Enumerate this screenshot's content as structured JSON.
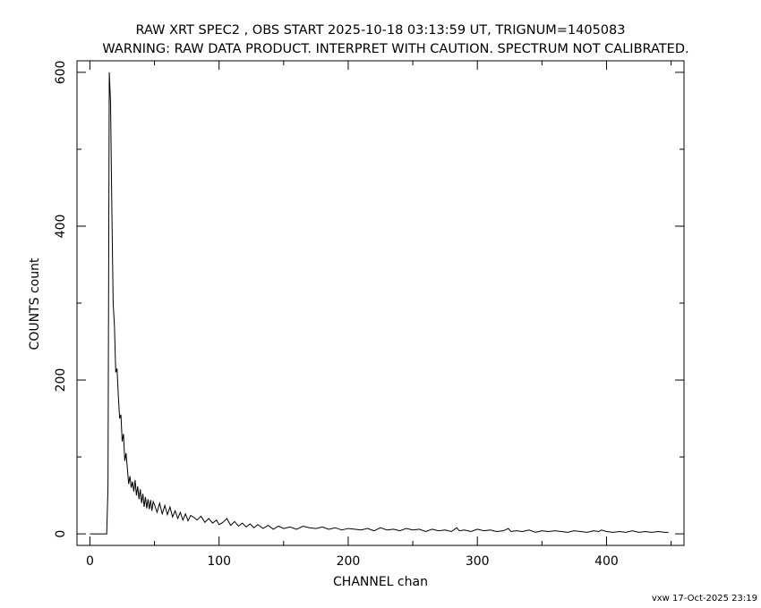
{
  "chart_data": {
    "type": "line",
    "title": "RAW XRT SPEC2 , OBS START 2025-10-18 03:13:59 UT, TRIGNUM=1405083",
    "subtitle": "WARNING: RAW DATA PRODUCT. INTERPRET WITH CAUTION. SPECTRUM NOT CALIBRATED.",
    "xlabel": "CHANNEL  chan",
    "ylabel": "COUNTS  count",
    "xlim": [
      -10,
      460
    ],
    "ylim": [
      -15,
      615
    ],
    "x_ticks": [
      0,
      100,
      200,
      300,
      400
    ],
    "y_ticks": [
      0,
      200,
      400,
      600
    ],
    "x_minor_step": 50,
    "y_minor_step": 100,
    "grid": false,
    "legend": "none",
    "line_color": "#000000",
    "series": [
      {
        "x": [
          0,
          13,
          14,
          15,
          16,
          17,
          18,
          19,
          20,
          21,
          22,
          23,
          24,
          25,
          26,
          27,
          28,
          29,
          30,
          31,
          32,
          33,
          34,
          35,
          36,
          37,
          38,
          39,
          40,
          41,
          42,
          43,
          44,
          45,
          46,
          47,
          48,
          49,
          50,
          52,
          54,
          56,
          58,
          60,
          62,
          64,
          66,
          68,
          70,
          72,
          74,
          76,
          78,
          80,
          83,
          86,
          89,
          92,
          95,
          98,
          100,
          103,
          106,
          109,
          112,
          115,
          118,
          121,
          124,
          127,
          130,
          134,
          138,
          142,
          146,
          150,
          155,
          160,
          165,
          170,
          175,
          180,
          185,
          190,
          195,
          200,
          205,
          210,
          215,
          220,
          225,
          230,
          235,
          240,
          245,
          250,
          255,
          260,
          265,
          270,
          275,
          280,
          284,
          286,
          290,
          295,
          300,
          305,
          310,
          315,
          320,
          324,
          326,
          330,
          335,
          340,
          345,
          350,
          355,
          360,
          365,
          370,
          375,
          380,
          385,
          390,
          394,
          396,
          400,
          405,
          410,
          415,
          420,
          425,
          430,
          435,
          440,
          445,
          448
        ],
        "y": [
          0,
          0,
          60,
          600,
          560,
          420,
          300,
          270,
          210,
          215,
          180,
          150,
          155,
          120,
          130,
          95,
          105,
          85,
          65,
          75,
          60,
          68,
          55,
          70,
          50,
          62,
          45,
          58,
          40,
          52,
          35,
          48,
          33,
          45,
          32,
          44,
          30,
          42,
          38,
          28,
          40,
          26,
          37,
          25,
          35,
          22,
          30,
          20,
          28,
          18,
          26,
          17,
          24,
          22,
          18,
          23,
          15,
          20,
          14,
          18,
          12,
          15,
          20,
          11,
          16,
          10,
          14,
          9,
          13,
          8,
          12,
          7,
          11,
          6,
          10,
          7,
          9,
          6,
          10,
          8,
          7,
          9,
          6,
          8,
          5,
          7,
          6,
          5,
          7,
          4,
          8,
          5,
          6,
          4,
          7,
          5,
          6,
          3,
          6,
          4,
          5,
          3,
          8,
          4,
          5,
          3,
          6,
          4,
          5,
          3,
          4,
          7,
          3,
          4,
          3,
          5,
          2,
          4,
          3,
          4,
          3,
          2,
          4,
          3,
          2,
          4,
          3,
          5,
          3,
          2,
          3,
          2,
          4,
          2,
          3,
          2,
          3,
          2,
          2
        ]
      }
    ]
  },
  "footer": {
    "text": "vxw 17-Oct-2025 23:19"
  }
}
